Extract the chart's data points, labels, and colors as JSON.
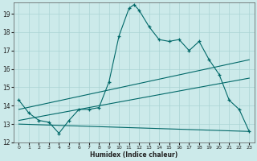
{
  "xlabel": "Humidex (Indice chaleur)",
  "ylabel": "",
  "bg_color": "#cceaea",
  "grid_color": "#aad4d4",
  "line_color": "#006868",
  "xlim": [
    -0.5,
    23.5
  ],
  "ylim": [
    12,
    19.6
  ],
  "yticks": [
    12,
    13,
    14,
    15,
    16,
    17,
    18,
    19
  ],
  "xticks": [
    0,
    1,
    2,
    3,
    4,
    5,
    6,
    7,
    8,
    9,
    10,
    11,
    12,
    13,
    14,
    15,
    16,
    17,
    18,
    19,
    20,
    21,
    22,
    23
  ],
  "series1_x": [
    0,
    1,
    2,
    3,
    4,
    5,
    6,
    7,
    8,
    9,
    10,
    11,
    11.5,
    12,
    13,
    14,
    15,
    16,
    17,
    18,
    19,
    20,
    21,
    22,
    23
  ],
  "series1_y": [
    14.3,
    13.6,
    13.2,
    13.1,
    12.5,
    13.2,
    13.8,
    13.8,
    13.9,
    15.3,
    17.8,
    19.3,
    19.5,
    19.2,
    18.3,
    17.6,
    17.5,
    17.6,
    17.0,
    17.5,
    16.5,
    15.7,
    14.3,
    13.8,
    12.6
  ],
  "series2_x": [
    0,
    23
  ],
  "series2_y": [
    13.0,
    12.6
  ],
  "series3_x": [
    0,
    23
  ],
  "series3_y": [
    13.2,
    15.5
  ],
  "series4_x": [
    0,
    23
  ],
  "series4_y": [
    13.8,
    16.5
  ]
}
